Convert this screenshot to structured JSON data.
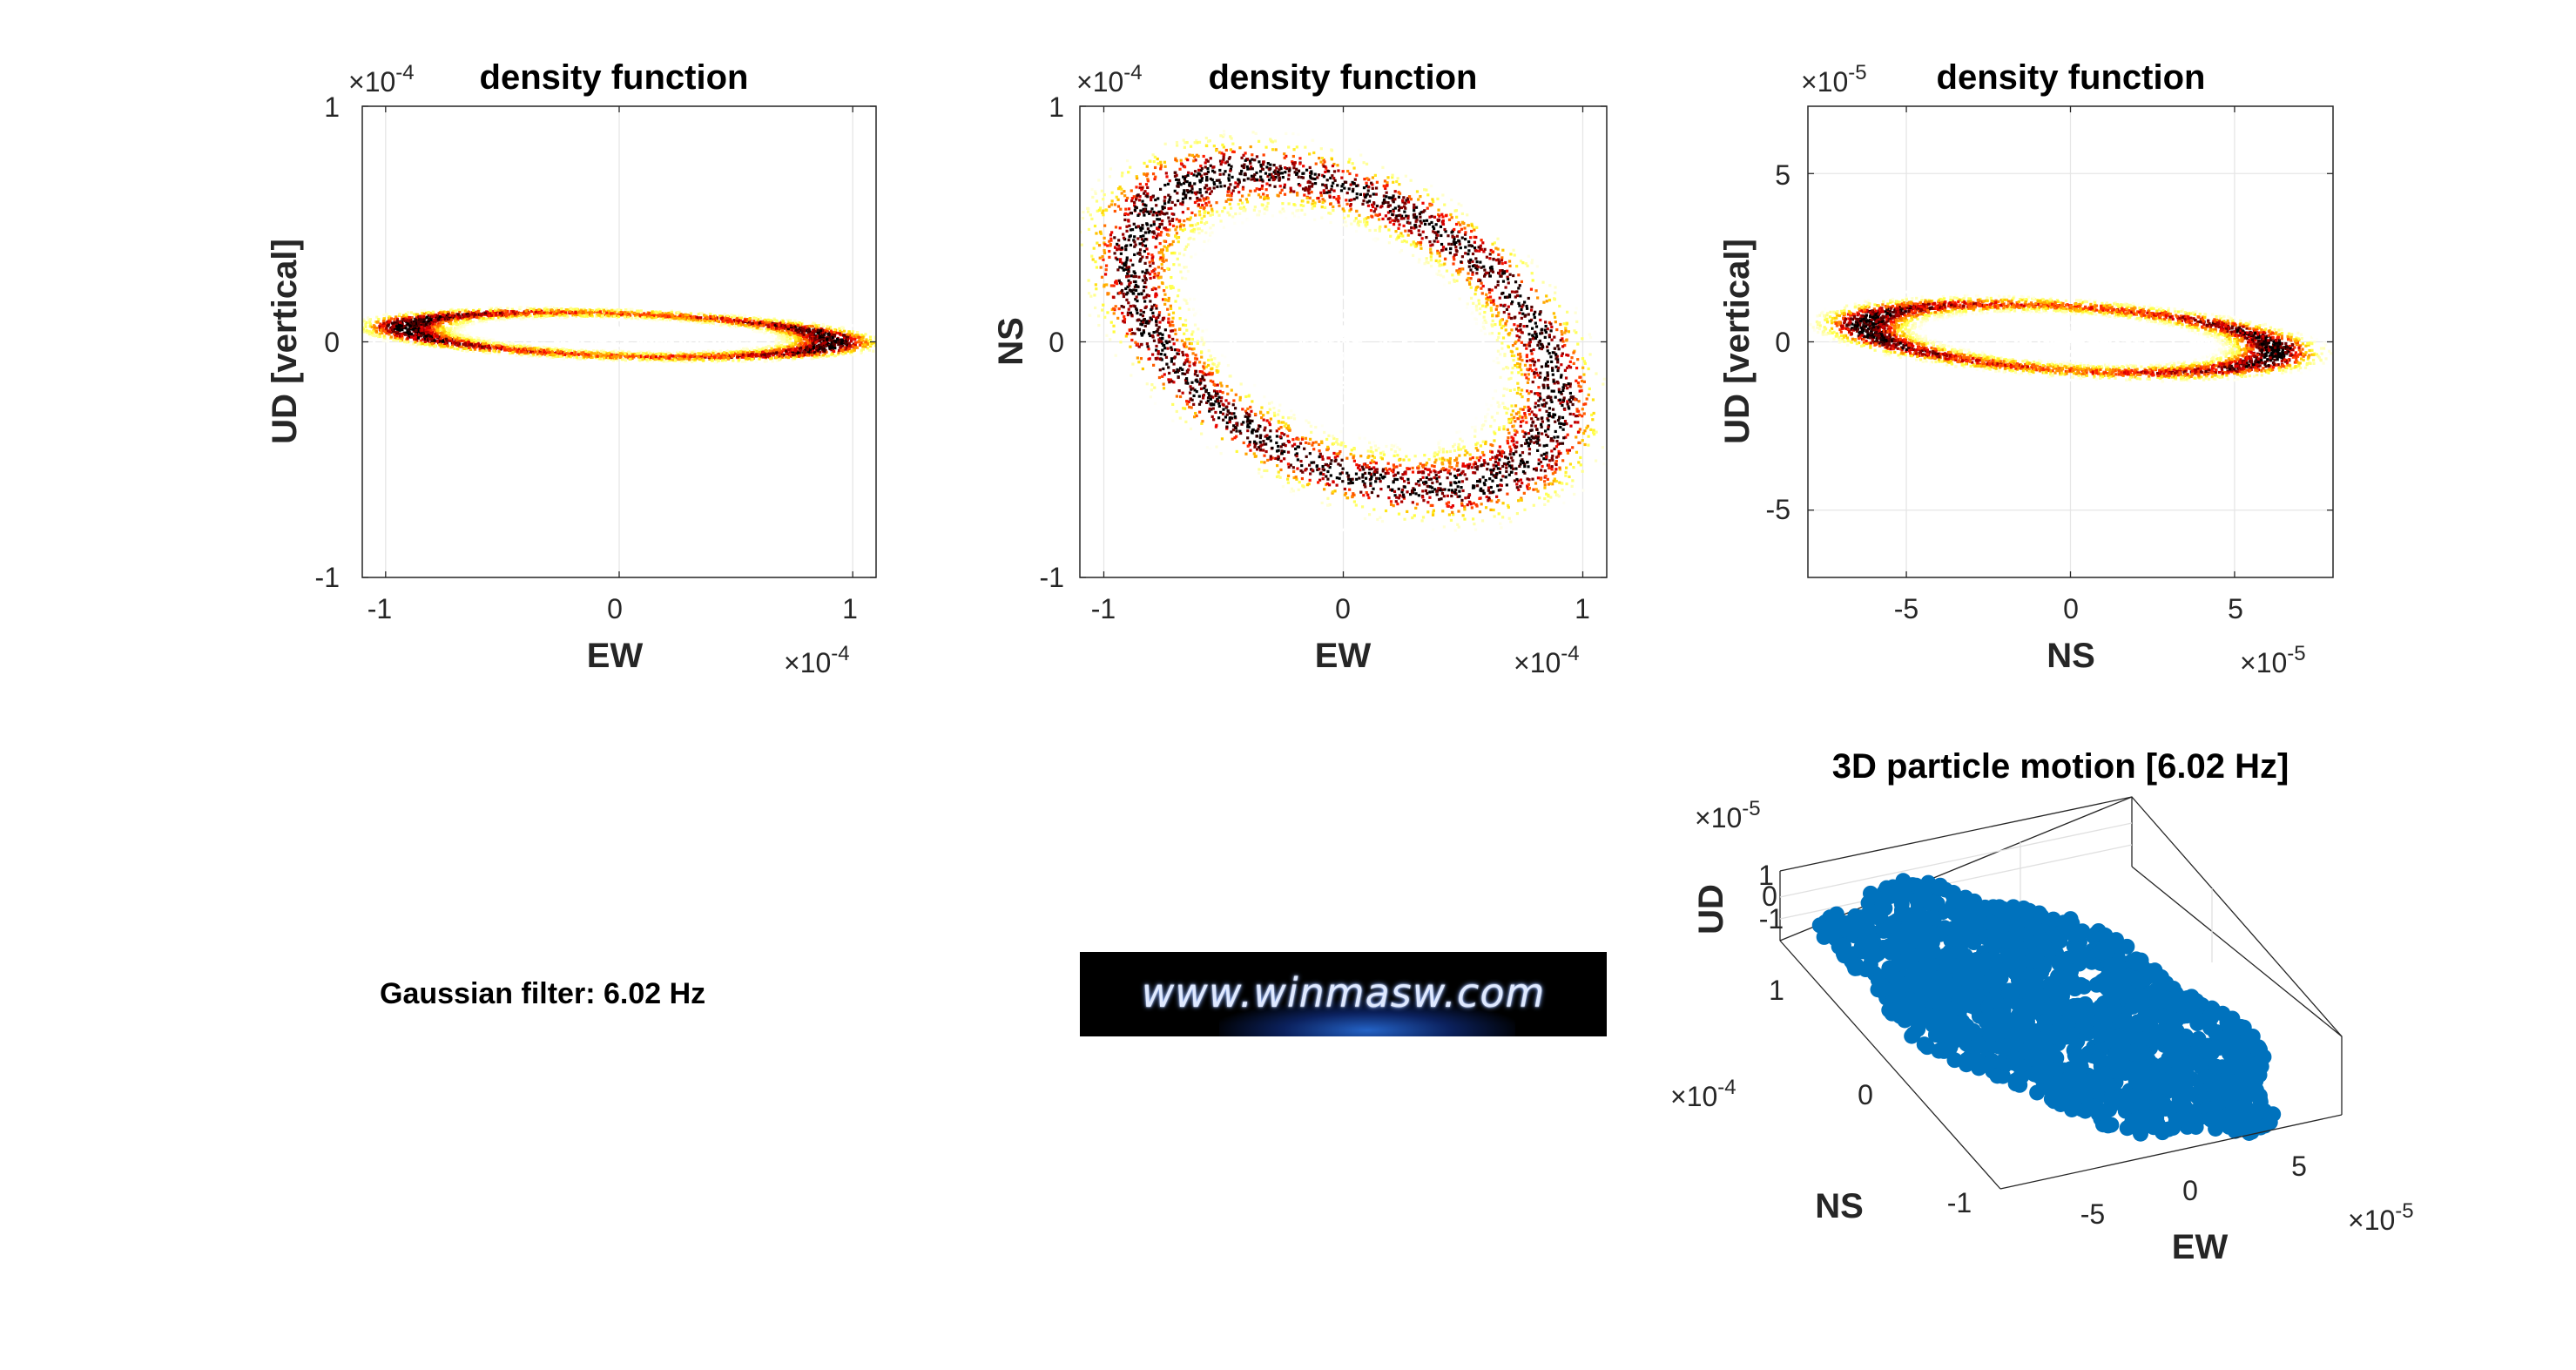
{
  "chart_data": [
    {
      "type": "heatmap",
      "title": "density function",
      "xlabel": "EW",
      "ylabel": "UD [vertical]",
      "x_ticks": [
        "-1",
        "0",
        "1"
      ],
      "y_ticks": [
        "1",
        "0",
        "-1"
      ],
      "x_exponent": "×10",
      "x_exponent_power": "-4",
      "y_exponent": "×10",
      "y_exponent_power": "-4",
      "xlim": [
        -1.1,
        1.1
      ],
      "ylim": [
        -1,
        1
      ],
      "units_scale": 0.0001,
      "grid": true,
      "colormap": "hot (reversed)",
      "ring": {
        "center": [
          0,
          0.03
        ],
        "semi_major": 0.92,
        "semi_minor": 0.09,
        "tilt_deg": -2,
        "dense_ends": true
      }
    },
    {
      "type": "heatmap",
      "title": "density function",
      "xlabel": "EW",
      "ylabel": "NS",
      "x_ticks": [
        "-1",
        "0",
        "1"
      ],
      "y_ticks": [
        "1",
        "0",
        "-1"
      ],
      "x_exponent": "×10",
      "x_exponent_power": "-4",
      "y_exponent": "×10",
      "y_exponent_power": "-4",
      "xlim": [
        -1.1,
        1.1
      ],
      "ylim": [
        -1,
        1
      ],
      "units_scale": 0.0001,
      "grid": true,
      "colormap": "hot (reversed)",
      "ring": {
        "center": [
          0,
          0.05
        ],
        "semi_major": 0.98,
        "semi_minor": 0.55,
        "tilt_deg": -33,
        "dense_ends": false
      }
    },
    {
      "type": "heatmap",
      "title": "density function",
      "xlabel": "NS",
      "ylabel": "UD [vertical]",
      "x_ticks": [
        "-5",
        "0",
        "5"
      ],
      "y_ticks": [
        "5",
        "0",
        "-5"
      ],
      "x_exponent": "×10",
      "x_exponent_power": "-5",
      "y_exponent": "×10",
      "y_exponent_power": "-5",
      "xlim": [
        -8,
        8
      ],
      "ylim": [
        -7,
        7
      ],
      "units_scale": 1e-05,
      "grid": true,
      "colormap": "hot (reversed)",
      "ring": {
        "center": [
          0,
          0.1
        ],
        "semi_major": 6.3,
        "semi_minor": 0.95,
        "tilt_deg": -4,
        "dense_ends": true
      }
    },
    {
      "type": "scatter",
      "title": "3D particle motion [6.02 Hz]",
      "projection": "3d",
      "xlabel": "EW",
      "ylabel": "NS",
      "zlabel": "UD",
      "x_ticks": [
        "-5",
        "0",
        "5"
      ],
      "y_ticks": [
        "1",
        "0",
        "-1"
      ],
      "z_ticks": [
        "1",
        "0",
        "-1"
      ],
      "x_exponent": "×10",
      "x_exponent_power": "-5",
      "y_exponent": "×10",
      "y_exponent_power": "-4",
      "z_exponent": "×10",
      "z_exponent_power": "-5",
      "marker_color": "#0072BD",
      "grid": true
    }
  ],
  "annotation": {
    "filter_label": "Gaussian filter: 6.02 Hz"
  },
  "logo": {
    "text": "www.winmasw.com",
    "background": "#000000"
  },
  "colors": {
    "axis": "#262626",
    "grid": "#e6e6e6",
    "scatter": "#0072BD"
  }
}
